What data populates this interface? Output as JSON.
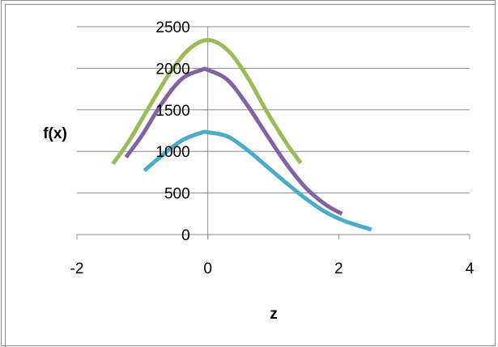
{
  "chart_data": {
    "type": "line",
    "xlabel": "z",
    "ylabel": "f(x)",
    "xlim": [
      -2,
      4
    ],
    "ylim": [
      0,
      2500
    ],
    "x_ticks": [
      -2,
      0,
      2,
      4
    ],
    "y_ticks": [
      0,
      500,
      1000,
      1500,
      2000,
      2500
    ],
    "grid": "horizontal",
    "legend": "none",
    "series": [
      {
        "color": "#9bbb59",
        "x": [
          -1.45,
          -1.2,
          -0.9,
          -0.6,
          -0.3,
          0.0,
          0.3,
          0.6,
          0.9,
          1.2,
          1.42
        ],
        "y": [
          850,
          1130,
          1530,
          1920,
          2220,
          2340,
          2220,
          1900,
          1480,
          1100,
          860
        ]
      },
      {
        "color": "#8064a2",
        "x": [
          -1.25,
          -1.0,
          -0.7,
          -0.4,
          -0.1,
          0.0,
          0.3,
          0.6,
          0.9,
          1.2,
          1.5,
          1.8,
          2.05
        ],
        "y": [
          930,
          1200,
          1580,
          1870,
          1980,
          1980,
          1860,
          1560,
          1200,
          850,
          560,
          360,
          250
        ]
      },
      {
        "color": "#4bacc6",
        "x": [
          -0.97,
          -0.7,
          -0.4,
          -0.1,
          0.0,
          0.3,
          0.6,
          0.9,
          1.2,
          1.5,
          1.8,
          2.1,
          2.5
        ],
        "y": [
          770,
          950,
          1130,
          1225,
          1230,
          1180,
          1020,
          820,
          620,
          430,
          270,
          160,
          60
        ]
      }
    ]
  }
}
